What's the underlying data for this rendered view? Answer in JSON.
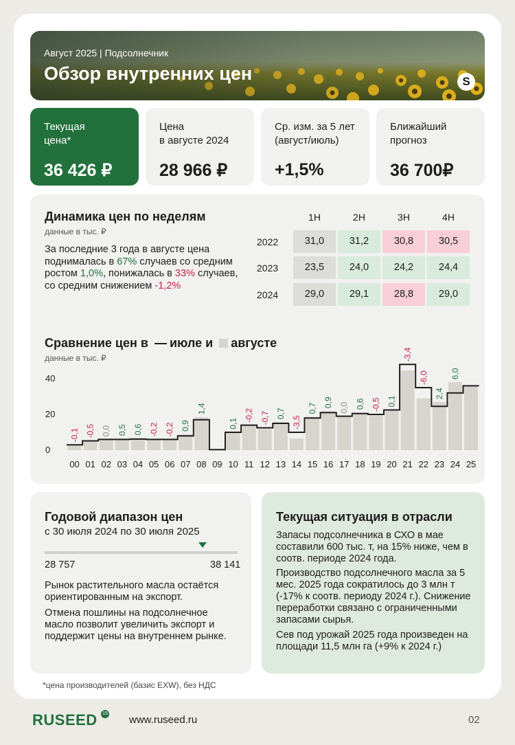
{
  "header": {
    "kicker": "Август 2025  |  Подсолнечник",
    "title": "Обзор внутренних цен",
    "logo": "S"
  },
  "stats": [
    {
      "label": "Текущая\nцена*",
      "value": "36 426 ₽"
    },
    {
      "label": "Цена\nв августе 2024",
      "value": "28 966 ₽"
    },
    {
      "label": "Ср. изм. за 5 лет\n(август/июль)",
      "value": "+1,5%"
    },
    {
      "label": "Ближайший\nпрогноз",
      "value": "36 700₽"
    }
  ],
  "weekly": {
    "title": "Динамика цен по неделям",
    "subtitle": "данные в тыс. ₽",
    "text_1": "За последние 3 года в августе цена поднималась в ",
    "pct_up": "67%",
    "text_2": " случаев со средним ростом ",
    "avg_up": "1,0%",
    "text_3": ", понижалась в ",
    "pct_down": "33%",
    "text_4": " случаев, со средним снижением ",
    "avg_down": "-1,2%",
    "columns": [
      "1Н",
      "2Н",
      "3Н",
      "4Н"
    ],
    "rows": [
      {
        "year": "2022",
        "cells": [
          {
            "v": "31,0",
            "s": "eq"
          },
          {
            "v": "31,2",
            "s": "up"
          },
          {
            "v": "30,8",
            "s": "dn"
          },
          {
            "v": "30,5",
            "s": "dn"
          }
        ]
      },
      {
        "year": "2023",
        "cells": [
          {
            "v": "23,5",
            "s": "eq"
          },
          {
            "v": "24,0",
            "s": "up"
          },
          {
            "v": "24,2",
            "s": "up"
          },
          {
            "v": "24,4",
            "s": "up"
          }
        ]
      },
      {
        "year": "2024",
        "cells": [
          {
            "v": "29,0",
            "s": "eq"
          },
          {
            "v": "29,1",
            "s": "up"
          },
          {
            "v": "28,8",
            "s": "dn"
          },
          {
            "v": "29,0",
            "s": "up"
          }
        ]
      }
    ]
  },
  "comparison": {
    "title_1": "Сравнение цен в",
    "title_2": "июле и",
    "title_3": "августе",
    "subtitle": "данные в тыс. ₽"
  },
  "chart_data": {
    "type": "bar",
    "categories": [
      "00",
      "01",
      "02",
      "03",
      "04",
      "05",
      "06",
      "07",
      "08",
      "09",
      "10",
      "11",
      "12",
      "13",
      "14",
      "15",
      "16",
      "17",
      "18",
      "19",
      "20",
      "21",
      "22",
      "23",
      "24",
      "25"
    ],
    "series": [
      {
        "name": "июле",
        "values": [
          3.0,
          5.2,
          6.0,
          6.0,
          6.2,
          6.0,
          6.0,
          8.0,
          17.0,
          0.3,
          10.0,
          14.0,
          12.5,
          15.0,
          10.0,
          18.0,
          21.0,
          19.0,
          20.5,
          20.0,
          22.5,
          48.0,
          35.0,
          24.5,
          32.0,
          36.0
        ]
      },
      {
        "name": "августе",
        "values": [
          2.9,
          4.7,
          6.0,
          6.5,
          6.8,
          5.8,
          5.8,
          8.9,
          18.4,
          0.3,
          10.1,
          13.8,
          11.8,
          15.7,
          6.5,
          18.7,
          21.9,
          19.0,
          21.1,
          19.5,
          22.6,
          44.6,
          29.0,
          26.9,
          38.0,
          36.0
        ]
      }
    ],
    "changes": [
      "-0,1",
      "-0,5",
      "0,0",
      "0,5",
      "0,6",
      "-0,2",
      "-0,2",
      "0,9",
      "1,4",
      "",
      "0,1",
      "-0,2",
      "-0,7",
      "0,7",
      "-3,5",
      "0,7",
      "0,9",
      "0,0",
      "0,6",
      "-0,5",
      "0,1",
      "-3,4",
      "-6,0",
      "2,4",
      "6,0",
      ""
    ],
    "y_ticks": [
      "0",
      "20",
      "40"
    ],
    "ylim": [
      0,
      50
    ]
  },
  "range": {
    "title": "Годовой диапазон цен",
    "period": "с 30 июля 2024 по 30 июля 2025",
    "min": "28 757",
    "max": "38 141",
    "current_fraction": 0.82,
    "p1": "Рынок растительного масла остаётся ориентированным на экспорт.",
    "p2": "Отмена пошлины на подсолнечное масло позволит увеличить экспорт и поддержит цены на внутреннем рынке."
  },
  "situation": {
    "title": "Текущая ситуация в отрасли",
    "p1": "Запасы подсолнечника в СХО в мае составили 600 тыс. т, на 15% ниже, чем в соотв. периоде 2024 года.",
    "p2": "Производство подсолнечного масла за 5 мес. 2025 года сократилось до 3 млн т (-17% к соотв. периоду 2024 г.). Снижение переработки связано с ограниченными запасами сырья.",
    "p3": "Сев под урожай 2025 года произведен на площади 11,5 млн га (+9% к 2024 г.)"
  },
  "footer": {
    "footnote": "*цена производителей (базис EXW), без НДС",
    "brand": "RUSEED",
    "brand_mark": "15",
    "site": "www.ruseed.ru",
    "page": "02"
  },
  "colors": {
    "accent": "#22713d",
    "negative": "#c0234a",
    "bar": "#d6d4cc"
  }
}
